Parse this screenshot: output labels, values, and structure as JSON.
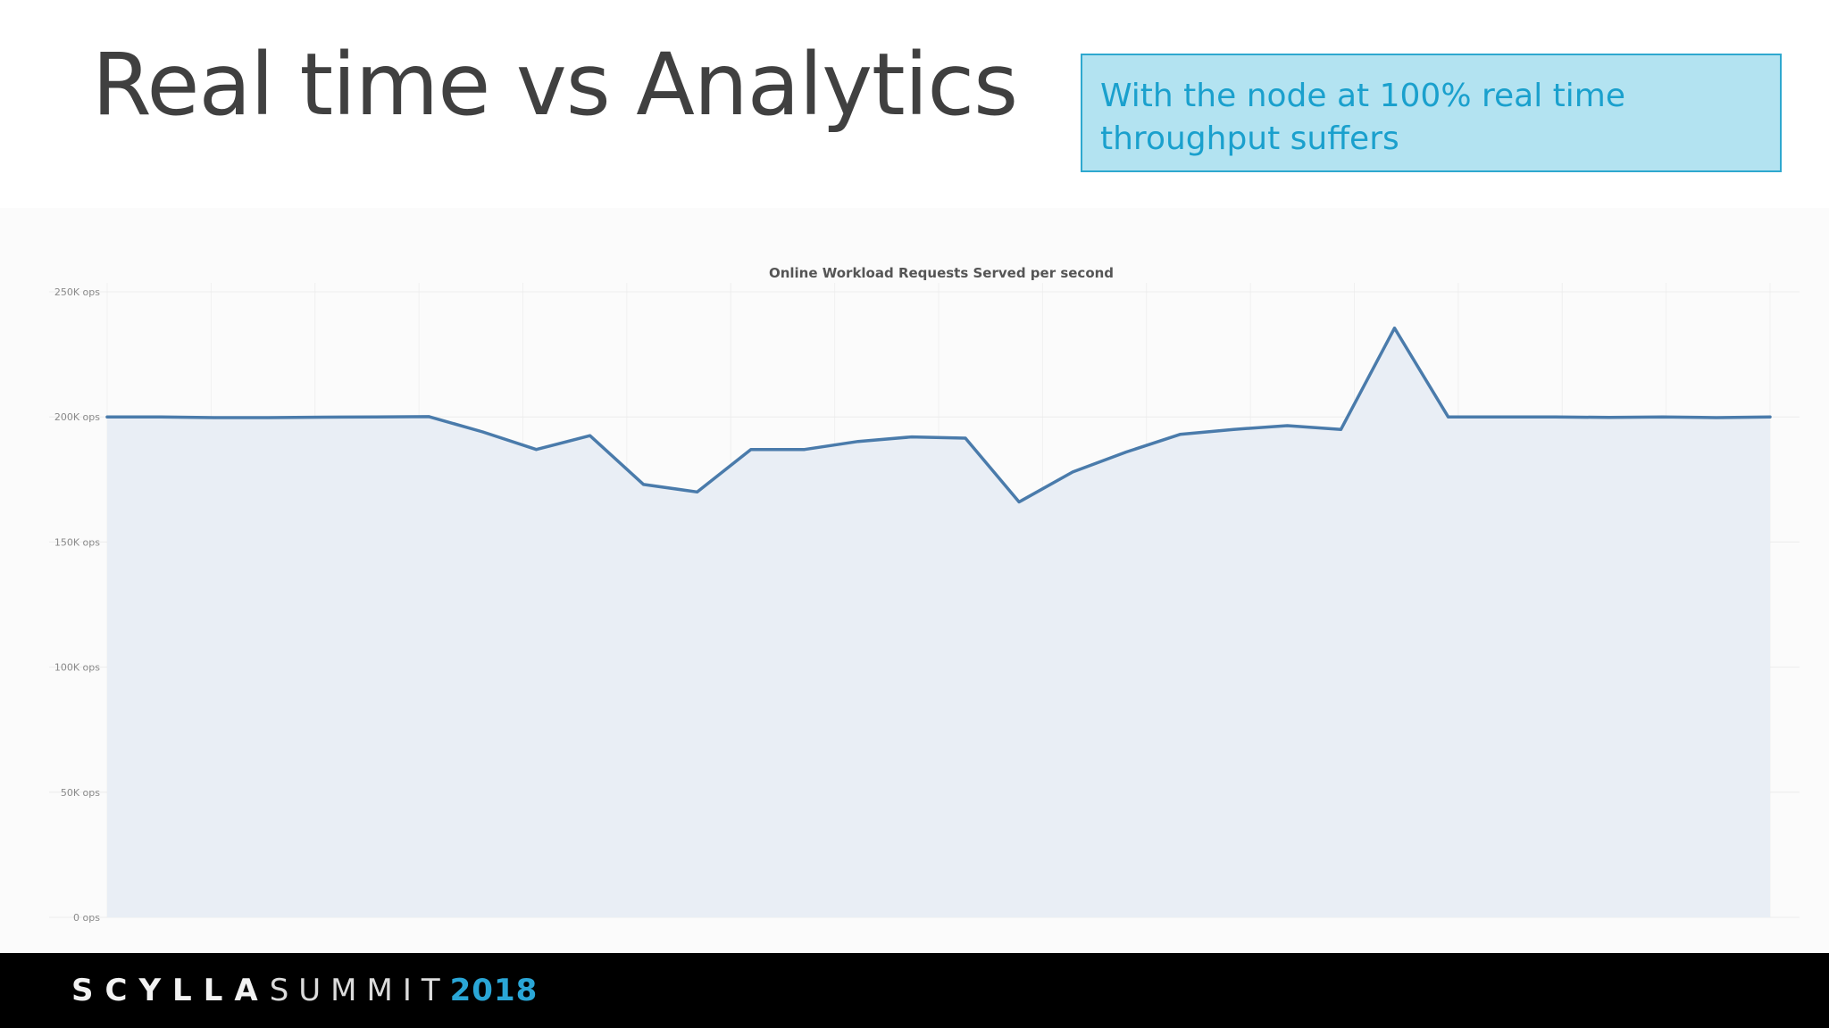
{
  "slide": {
    "title": "Real time vs Analytics",
    "callout": "With the node at 100% real time throughput suffers"
  },
  "footer": {
    "brand_part1": "SCYLLA",
    "brand_part2": "SUMMIT",
    "brand_year": "2018"
  },
  "colors": {
    "line": "#4a7bab",
    "area": "#e9eef5",
    "callout_bg": "#b3e3f1",
    "callout_text": "#1aa0cd",
    "brand_accent": "#2aa6d6"
  },
  "chart_data": {
    "type": "area",
    "title": "Online Workload Requests Served per second",
    "xlabel": "",
    "ylabel": "",
    "ylim": [
      0,
      250000
    ],
    "yticks": [
      {
        "value": 250000,
        "label": "250K ops"
      },
      {
        "value": 200000,
        "label": "200K ops"
      },
      {
        "value": 150000,
        "label": "150K ops"
      },
      {
        "value": 100000,
        "label": "100K ops"
      },
      {
        "value": 50000,
        "label": "50K ops"
      },
      {
        "value": 0,
        "label": "0 ops"
      }
    ],
    "grid": true,
    "x": [
      0,
      1,
      2,
      3,
      4,
      5,
      6,
      7,
      8,
      9,
      10,
      11,
      12,
      13,
      14,
      15,
      16,
      17,
      18,
      19,
      20,
      21,
      22,
      23,
      24,
      25,
      26,
      27,
      28,
      29,
      30,
      31
    ],
    "series": [
      {
        "values": [
          200000,
          200000,
          199700,
          199700,
          199900,
          200000,
          200100,
          194000,
          187000,
          192500,
          173000,
          170000,
          187000,
          187000,
          190200,
          192000,
          191500,
          166000,
          178000,
          186000,
          193000,
          195000,
          196500,
          195000,
          235500,
          200000,
          200000,
          200000,
          199800,
          200000,
          199700,
          200000
        ]
      }
    ]
  }
}
